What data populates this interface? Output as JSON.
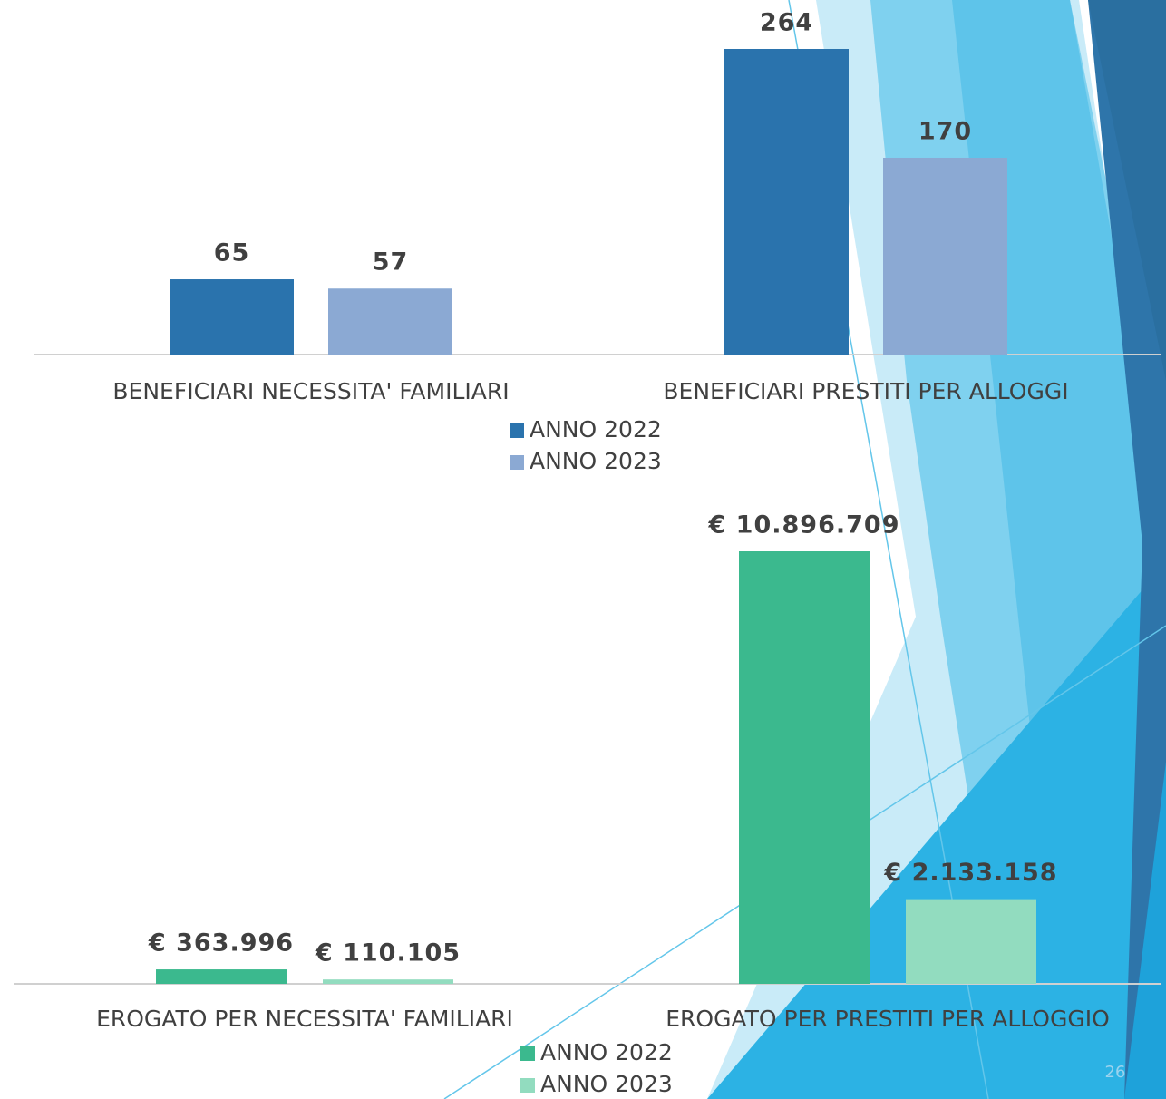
{
  "chart_data": [
    {
      "type": "bar",
      "categories": [
        "BENEFICIARI NECESSITA' FAMILIARI",
        "BENEFICIARI PRESTITI PER ALLOGGI"
      ],
      "series": [
        {
          "name": "ANNO 2022",
          "color": "#2a73ad",
          "values": [
            65,
            264
          ]
        },
        {
          "name": "ANNO 2023",
          "color": "#8ba9d3",
          "values": [
            57,
            170
          ]
        }
      ]
    },
    {
      "type": "bar",
      "categories": [
        "EROGATO PER NECESSITA' FAMILIARI",
        "EROGATO PER PRESTITI PER ALLOGGIO"
      ],
      "series": [
        {
          "name": "ANNO 2022",
          "color": "#3bb98e",
          "values": [
            363996,
            10896709
          ],
          "value_labels": [
            "€ 363.996",
            "€ 10.896.709"
          ]
        },
        {
          "name": "ANNO 2023",
          "color": "#92dcbf",
          "values": [
            110105,
            2133158
          ],
          "value_labels": [
            "€ 110.105",
            "€ 2.133.158"
          ]
        }
      ]
    }
  ],
  "page_number": "26"
}
